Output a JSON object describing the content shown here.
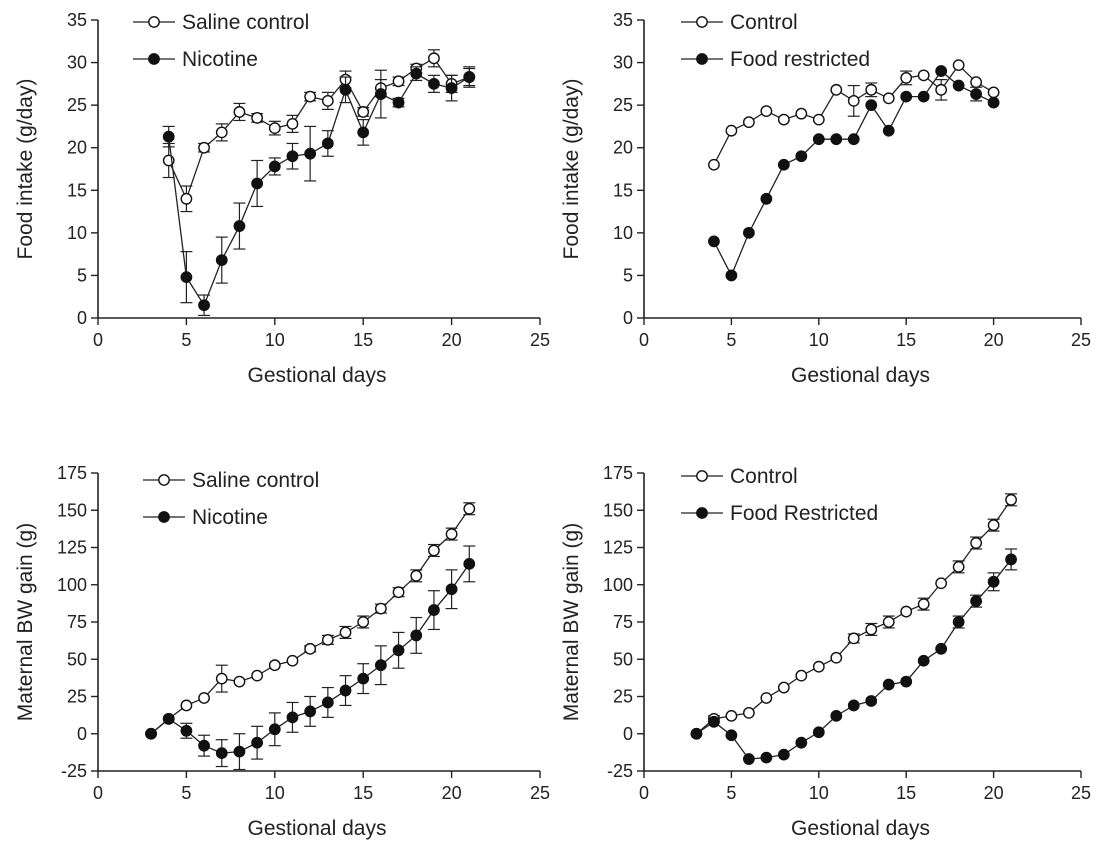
{
  "chart_data": [
    {
      "type": "line",
      "xlabel": "Gestional days",
      "ylabel": "Food intake (g/day)",
      "xlim": [
        0,
        25
      ],
      "ylim": [
        0,
        35
      ],
      "xticks": [
        0,
        5,
        10,
        15,
        20,
        25
      ],
      "yticks": [
        0,
        5,
        10,
        15,
        20,
        25,
        30,
        35
      ],
      "legend_position": "top-left",
      "series": [
        {
          "name": "Saline control",
          "marker": "open-circle",
          "x": [
            4,
            5,
            6,
            7,
            8,
            9,
            10,
            11,
            12,
            13,
            14,
            15,
            16,
            17,
            18,
            19,
            20,
            21
          ],
          "y": [
            18.5,
            14,
            20,
            21.8,
            24.2,
            23.5,
            22.3,
            22.8,
            26,
            25.5,
            28,
            24.2,
            27,
            27.8,
            29.3,
            30.5,
            27.5,
            28.3
          ],
          "err": [
            2,
            1.5,
            0.5,
            1,
            1,
            0.5,
            0.8,
            1,
            0.5,
            1,
            1,
            0.5,
            1,
            0.5,
            0.5,
            1,
            1,
            1
          ]
        },
        {
          "name": "Nicotine",
          "marker": "filled-circle",
          "x": [
            4,
            5,
            6,
            7,
            8,
            9,
            10,
            11,
            12,
            13,
            14,
            15,
            16,
            17,
            18,
            19,
            20,
            21
          ],
          "y": [
            21.3,
            4.8,
            1.5,
            6.8,
            10.8,
            15.8,
            17.8,
            19,
            19.3,
            20.5,
            26.8,
            21.8,
            26.3,
            25.3,
            28.7,
            27.5,
            27,
            28.3
          ],
          "err": [
            1.2,
            3,
            1.2,
            2.7,
            2.7,
            2.7,
            1,
            1.5,
            3.2,
            1.5,
            1.5,
            1.5,
            2.8,
            0.5,
            0.8,
            1,
            1.5,
            1.2
          ]
        }
      ]
    },
    {
      "type": "line",
      "xlabel": "Gestional days",
      "ylabel": "Food intake (g/day)",
      "xlim": [
        0,
        25
      ],
      "ylim": [
        0,
        35
      ],
      "xticks": [
        0,
        5,
        10,
        15,
        20,
        25
      ],
      "yticks": [
        0,
        5,
        10,
        15,
        20,
        25,
        30,
        35
      ],
      "legend_position": "top-left",
      "series": [
        {
          "name": "Control",
          "marker": "open-circle",
          "x": [
            4,
            5,
            6,
            7,
            8,
            9,
            10,
            11,
            12,
            13,
            14,
            15,
            16,
            17,
            18,
            19,
            20
          ],
          "y": [
            18,
            22,
            23,
            24.3,
            23.3,
            24,
            23.3,
            26.8,
            25.5,
            26.8,
            25.8,
            28.2,
            28.5,
            26.8,
            29.7,
            27.7,
            26.5
          ],
          "err": [
            0,
            0,
            0,
            0,
            0,
            0,
            0,
            0,
            1.8,
            0.8,
            0,
            0.8,
            0,
            1.2,
            0,
            0,
            0
          ]
        },
        {
          "name": "Food restricted",
          "marker": "filled-circle",
          "x": [
            4,
            5,
            6,
            7,
            8,
            9,
            10,
            11,
            12,
            13,
            14,
            15,
            16,
            17,
            18,
            19,
            20
          ],
          "y": [
            9,
            5,
            10,
            14,
            18,
            19,
            21,
            21,
            21,
            25,
            22,
            26,
            26,
            29,
            27.3,
            26.3,
            25.3
          ],
          "err": [
            0,
            0,
            0,
            0,
            0,
            0,
            0,
            0,
            0,
            0,
            0,
            0,
            0,
            0,
            0,
            0.8,
            0
          ]
        }
      ]
    },
    {
      "type": "line",
      "xlabel": "Gestional days",
      "ylabel": "Maternal BW gain (g)",
      "xlim": [
        0,
        25
      ],
      "ylim": [
        -25,
        175
      ],
      "xticks": [
        0,
        5,
        10,
        15,
        20,
        25
      ],
      "yticks": [
        -25,
        0,
        25,
        50,
        75,
        100,
        125,
        150,
        175
      ],
      "legend_position": "top-left",
      "series": [
        {
          "name": "Saline control",
          "marker": "open-circle",
          "x": [
            3,
            4,
            5,
            6,
            7,
            8,
            9,
            10,
            11,
            12,
            13,
            14,
            15,
            16,
            17,
            18,
            19,
            20,
            21
          ],
          "y": [
            0,
            10,
            19,
            24,
            37,
            35,
            39,
            46,
            49,
            57,
            63,
            68,
            75,
            84,
            95,
            106,
            123,
            134,
            151
          ],
          "err": [
            0,
            0,
            0,
            0,
            9,
            0,
            0,
            0,
            0,
            2,
            3,
            4,
            4,
            3,
            3,
            4,
            4,
            4,
            4
          ]
        },
        {
          "name": "Nicotine",
          "marker": "filled-circle",
          "x": [
            3,
            4,
            5,
            6,
            7,
            8,
            9,
            10,
            11,
            12,
            13,
            14,
            15,
            16,
            17,
            18,
            19,
            20,
            21
          ],
          "y": [
            0,
            10,
            2,
            -8,
            -13,
            -12,
            -6,
            3,
            11,
            15,
            21,
            29,
            37,
            46,
            56,
            66,
            83,
            97,
            114
          ],
          "err": [
            0,
            0,
            5,
            7,
            9,
            12,
            11,
            11,
            10,
            10,
            10,
            10,
            10,
            13,
            12,
            12,
            13,
            13,
            12
          ]
        }
      ]
    },
    {
      "type": "line",
      "xlabel": "Gestional days",
      "ylabel": "Maternal BW gain (g)",
      "xlim": [
        0,
        25
      ],
      "ylim": [
        -25,
        175
      ],
      "xticks": [
        0,
        5,
        10,
        15,
        20,
        25
      ],
      "yticks": [
        -25,
        0,
        25,
        50,
        75,
        100,
        125,
        150,
        175
      ],
      "legend_position": "top-left",
      "series": [
        {
          "name": "Control",
          "marker": "open-circle",
          "x": [
            3,
            4,
            5,
            6,
            7,
            8,
            9,
            10,
            11,
            12,
            13,
            14,
            15,
            16,
            17,
            18,
            19,
            20,
            21
          ],
          "y": [
            0,
            10,
            12,
            14,
            24,
            31,
            39,
            45,
            51,
            64,
            70,
            75,
            82,
            87,
            101,
            112,
            128,
            140,
            157
          ],
          "err": [
            0,
            2,
            0,
            0,
            0,
            0,
            0,
            0,
            0,
            3,
            4,
            4,
            0,
            4,
            0,
            4,
            4,
            4,
            4
          ]
        },
        {
          "name": "Food Restricted",
          "marker": "filled-circle",
          "x": [
            3,
            4,
            5,
            6,
            7,
            8,
            9,
            10,
            11,
            12,
            13,
            14,
            15,
            16,
            17,
            18,
            19,
            20,
            21
          ],
          "y": [
            0,
            8,
            -1,
            -17,
            -16,
            -14,
            -6,
            1,
            12,
            19,
            22,
            33,
            35,
            49,
            57,
            75,
            89,
            102,
            117
          ],
          "err": [
            0,
            0,
            0,
            0,
            0,
            0,
            0,
            0,
            0,
            0,
            0,
            0,
            0,
            0,
            0,
            4,
            4,
            6,
            7
          ]
        }
      ]
    }
  ]
}
